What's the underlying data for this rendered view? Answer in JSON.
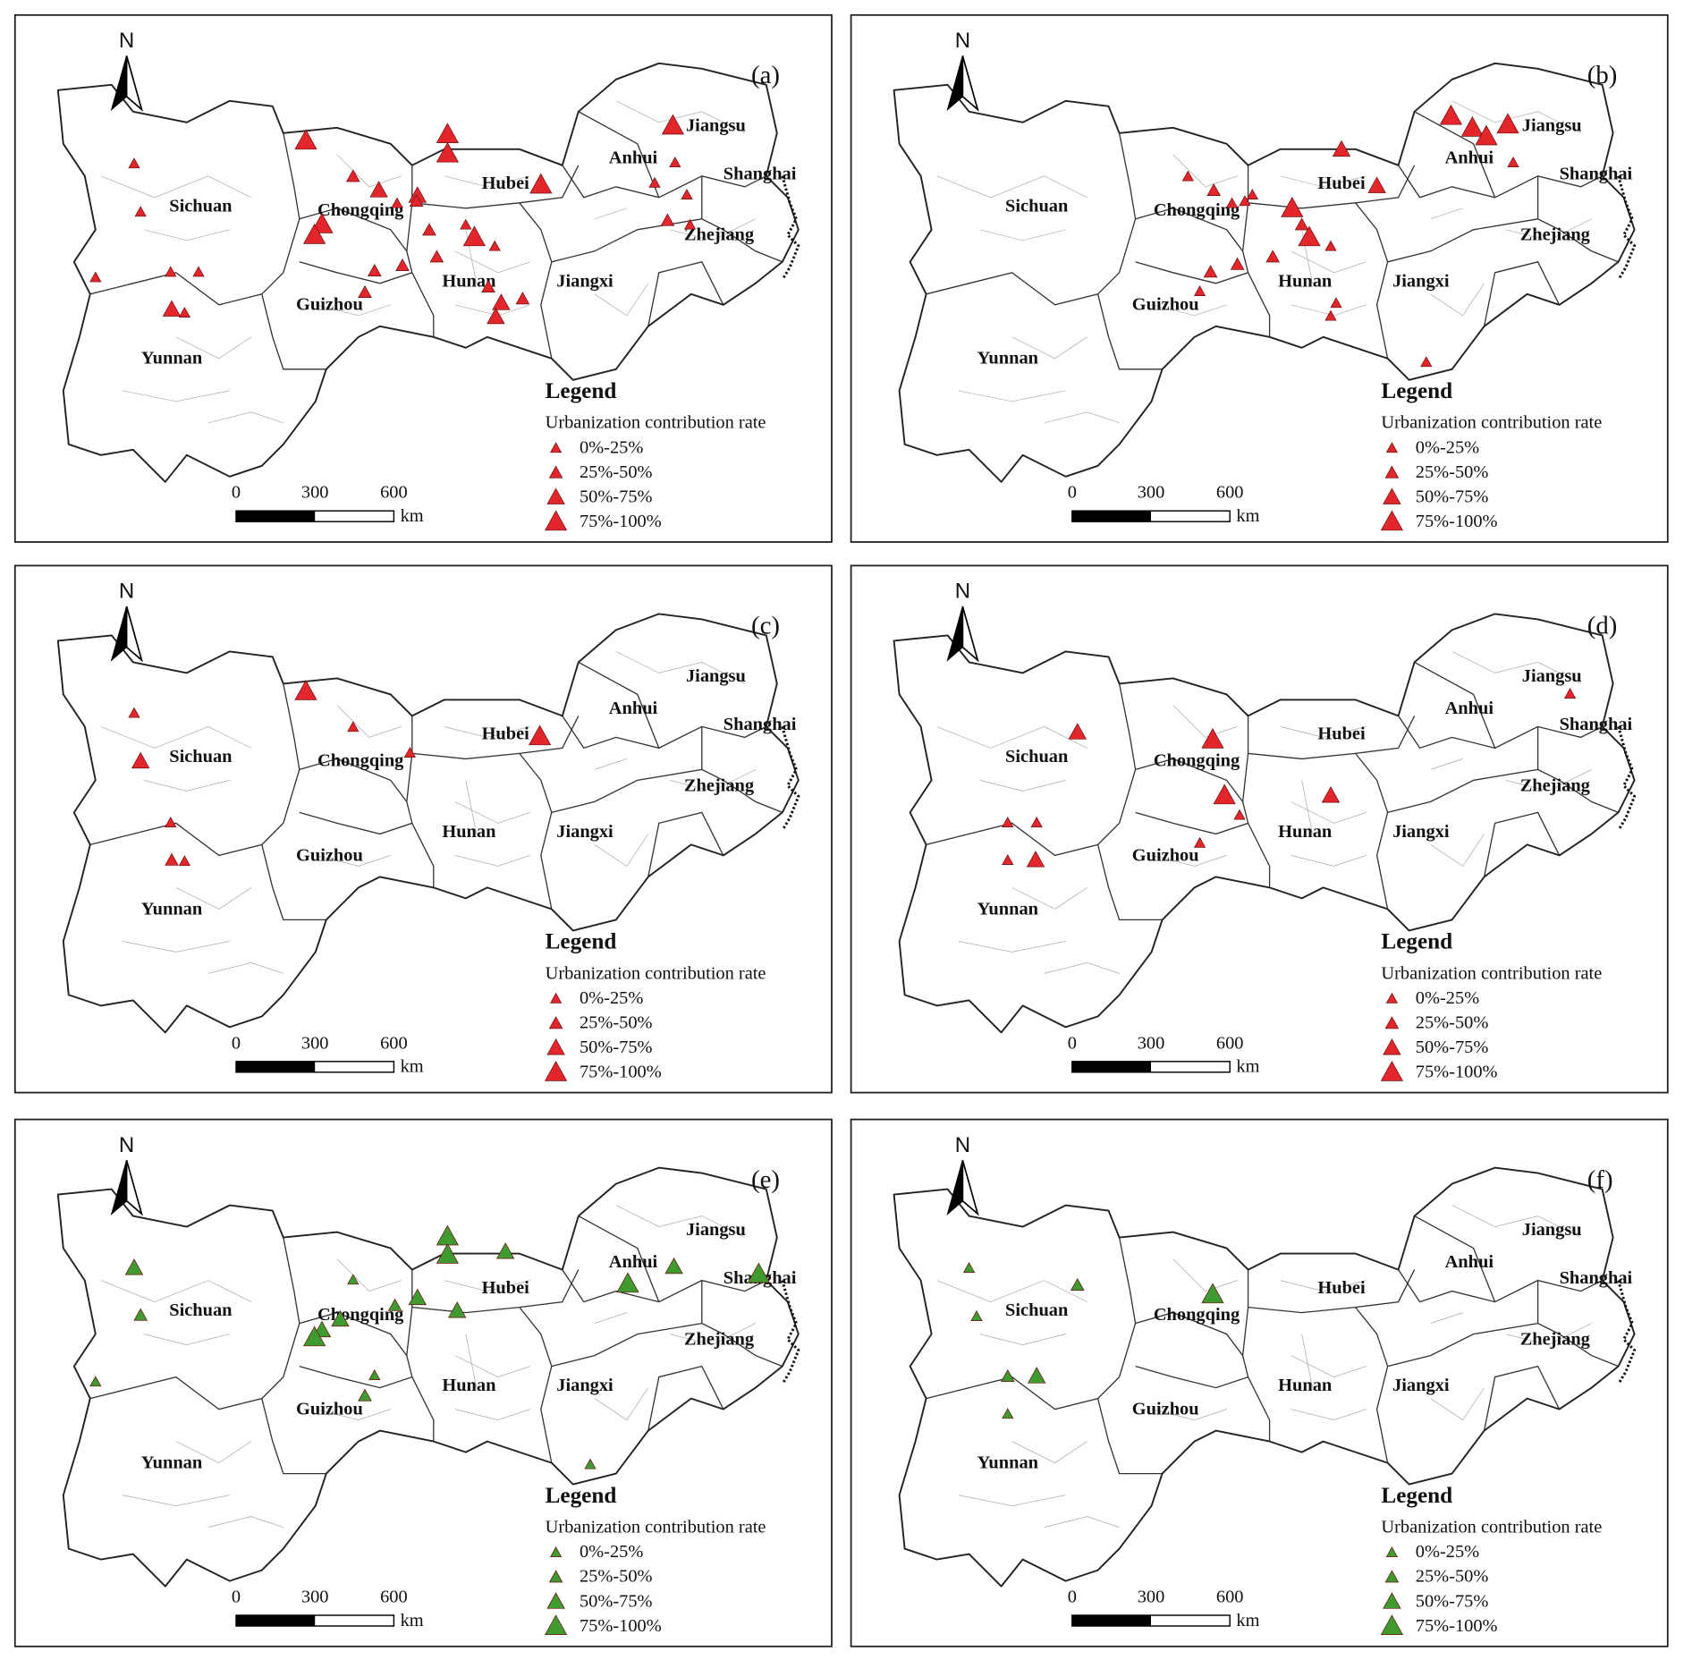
{
  "north": "N",
  "panels": [
    {
      "label": "(a)",
      "color": "#e3262b"
    },
    {
      "label": "(b)",
      "color": "#e3262b"
    },
    {
      "label": "(c)",
      "color": "#e3262b"
    },
    {
      "label": "(d)",
      "color": "#e3262b"
    },
    {
      "label": "(e)",
      "color": "#3f9b2f"
    },
    {
      "label": "(f)",
      "color": "#3f9b2f"
    }
  ],
  "provinces": [
    "Sichuan",
    "Chongqing",
    "Hubei",
    "Anhui",
    "Jiangsu",
    "Shanghai",
    "Zhejiang",
    "Jiangxi",
    "Hunan",
    "Guizhou",
    "Yunnan"
  ],
  "legend": {
    "title": "Legend",
    "subtitle": "Urbanization contribution rate",
    "classes": [
      "0%-25%",
      "25%-50%",
      "50%-75%",
      "75%-100%"
    ]
  },
  "scale": {
    "ticks": [
      0,
      300,
      600
    ],
    "unit": "km"
  }
}
